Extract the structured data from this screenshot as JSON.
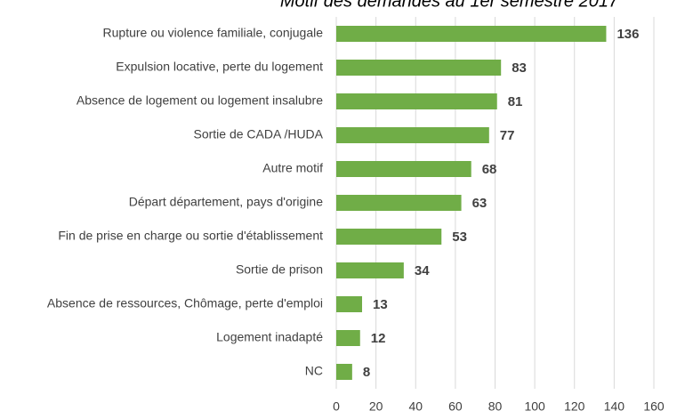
{
  "chart_data": {
    "type": "barh",
    "title": "Motif des demandes au 1er semestre 2017",
    "categories": [
      "Rupture ou violence familiale, conjugale",
      "Expulsion locative, perte du logement",
      "Absence de logement ou logement insalubre",
      "Sortie  de CADA /HUDA",
      "Autre motif",
      "Départ département, pays d'origine",
      "Fin de prise en charge ou sortie d'établissement",
      "Sortie de prison",
      "Absence de ressources, Chômage, perte d'emploi",
      "Logement inadapté",
      "NC"
    ],
    "values": [
      136,
      83,
      81,
      77,
      68,
      63,
      53,
      34,
      13,
      12,
      8
    ],
    "color": "#70ad47",
    "xlim": [
      0,
      160
    ],
    "xticks": [
      0,
      20,
      40,
      60,
      80,
      100,
      120,
      140,
      160
    ],
    "grid": true
  }
}
